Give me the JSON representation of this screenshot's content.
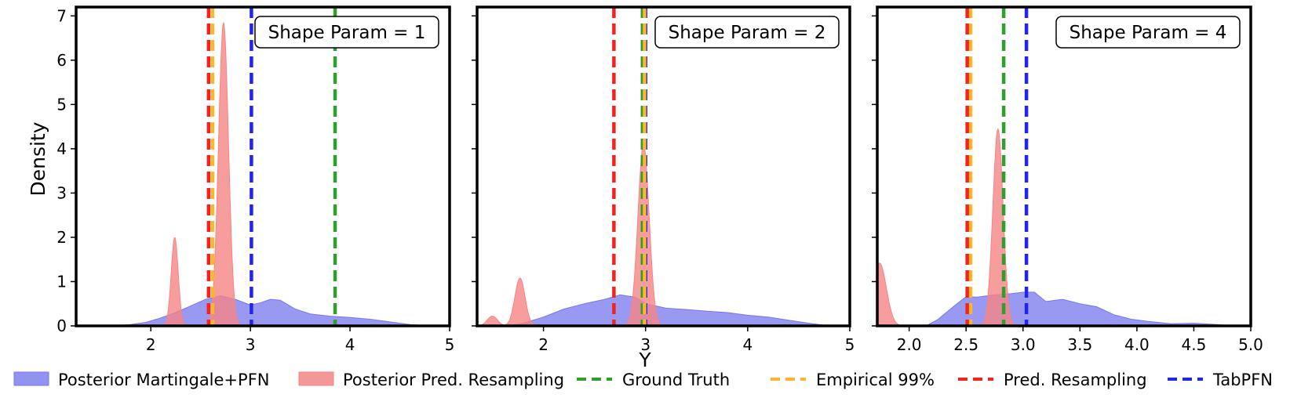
{
  "ylabel": "Density",
  "xlabel": "Y",
  "colors": {
    "posterior_mpfn": "#7777ee",
    "posterior_resampling": "#f58585",
    "ground_truth": "#2ca02c",
    "empirical_99": "#ffb52a",
    "pred_resampling": "#f5231f",
    "tabpfn": "#2424f0"
  },
  "legend": {
    "posterior_mpfn": "Posterior Martingale+PFN",
    "posterior_resampling": "Posterior Pred. Resampling",
    "ground_truth": "Ground Truth",
    "empirical_99": "Empirical 99%",
    "pred_resampling": "Pred. Resampling",
    "tabpfn": "TabPFN"
  },
  "chart_data": [
    {
      "type": "area",
      "label": "Shape Param = 1",
      "xlim": [
        1.25,
        5.0
      ],
      "ylim": [
        0,
        7.2
      ],
      "xticks": [
        2,
        3,
        4,
        5
      ],
      "xtick_labels": [
        "2",
        "3",
        "4",
        "5"
      ],
      "yticks": [
        0,
        1,
        2,
        3,
        4,
        5,
        6,
        7
      ],
      "ytick_labels": [
        "0",
        "1",
        "2",
        "3",
        "4",
        "5",
        "6",
        "7"
      ],
      "posterior_mpfn": {
        "x": [
          1.6,
          1.8,
          1.95,
          2.1,
          2.25,
          2.4,
          2.55,
          2.7,
          2.85,
          3.0,
          3.1,
          3.2,
          3.3,
          3.45,
          3.6,
          3.8,
          4.0,
          4.2,
          4.4,
          4.6,
          4.8
        ],
        "y": [
          0.0,
          0.03,
          0.08,
          0.18,
          0.3,
          0.45,
          0.6,
          0.68,
          0.6,
          0.47,
          0.52,
          0.6,
          0.58,
          0.38,
          0.27,
          0.22,
          0.19,
          0.15,
          0.09,
          0.03,
          0.0
        ]
      },
      "posterior_resampling": {
        "peaks": [
          {
            "center": 2.24,
            "sigma": 0.035,
            "height": 2.0
          },
          {
            "center": 2.73,
            "sigma": 0.05,
            "height": 6.85
          }
        ]
      },
      "vlines": {
        "ground_truth": 3.85,
        "empirical_99": 2.62,
        "pred_resampling": 2.58,
        "tabpfn": 3.01
      }
    },
    {
      "type": "area",
      "label": "Shape Param = 2",
      "xlim": [
        1.35,
        5.0
      ],
      "ylim": [
        0,
        7.2
      ],
      "xticks": [
        2,
        3,
        4,
        5
      ],
      "xtick_labels": [
        "2",
        "3",
        "4",
        "5"
      ],
      "yticks": [
        0,
        1,
        2,
        3,
        4,
        5,
        6,
        7
      ],
      "ytick_labels": [
        "",
        "",
        "",
        "",
        "",
        "",
        "",
        ""
      ],
      "posterior_mpfn": {
        "x": [
          1.65,
          1.8,
          2.0,
          2.2,
          2.4,
          2.6,
          2.75,
          2.9,
          3.0,
          3.2,
          3.4,
          3.6,
          3.8,
          4.0,
          4.2,
          4.4,
          4.6,
          4.8
        ],
        "y": [
          0.0,
          0.06,
          0.2,
          0.38,
          0.5,
          0.6,
          0.7,
          0.65,
          0.5,
          0.4,
          0.37,
          0.33,
          0.3,
          0.24,
          0.2,
          0.13,
          0.06,
          0.0
        ]
      },
      "posterior_resampling": {
        "peaks": [
          {
            "center": 1.5,
            "sigma": 0.05,
            "height": 0.22
          },
          {
            "center": 1.77,
            "sigma": 0.05,
            "height": 1.08
          },
          {
            "center": 2.98,
            "sigma": 0.055,
            "height": 4.1
          }
        ]
      },
      "vlines": {
        "ground_truth": 2.97,
        "empirical_99": 2.99,
        "pred_resampling": 2.69,
        "tabpfn": 3.0
      }
    },
    {
      "type": "area",
      "label": "Shape Param = 4",
      "xlim": [
        1.72,
        5.0
      ],
      "ylim": [
        0,
        7.2
      ],
      "xticks": [
        2.0,
        2.5,
        3.0,
        3.5,
        4.0,
        4.5,
        5.0
      ],
      "xtick_labels": [
        "2.0",
        "2.5",
        "3.0",
        "3.5",
        "4.0",
        "4.5",
        "5.0"
      ],
      "yticks": [
        0,
        1,
        2,
        3,
        4,
        5,
        6,
        7
      ],
      "ytick_labels": [
        "",
        "",
        "",
        "",
        "",
        "",
        "",
        ""
      ],
      "posterior_mpfn": {
        "x": [
          2.15,
          2.25,
          2.4,
          2.5,
          2.6,
          2.75,
          2.9,
          3.0,
          3.1,
          3.2,
          3.35,
          3.5,
          3.65,
          3.8,
          3.95,
          4.1,
          4.3,
          4.5,
          4.7,
          4.85
        ],
        "y": [
          0.0,
          0.14,
          0.46,
          0.66,
          0.65,
          0.7,
          0.73,
          0.76,
          0.76,
          0.55,
          0.6,
          0.5,
          0.43,
          0.25,
          0.15,
          0.1,
          0.05,
          0.06,
          0.03,
          0.0
        ]
      },
      "posterior_resampling": {
        "peaks": [
          {
            "center": 1.74,
            "sigma": 0.06,
            "height": 1.42
          },
          {
            "center": 2.78,
            "sigma": 0.045,
            "height": 4.45
          }
        ]
      },
      "vlines": {
        "ground_truth": 2.83,
        "empirical_99": 2.54,
        "pred_resampling": 2.51,
        "tabpfn": 3.03
      }
    }
  ]
}
